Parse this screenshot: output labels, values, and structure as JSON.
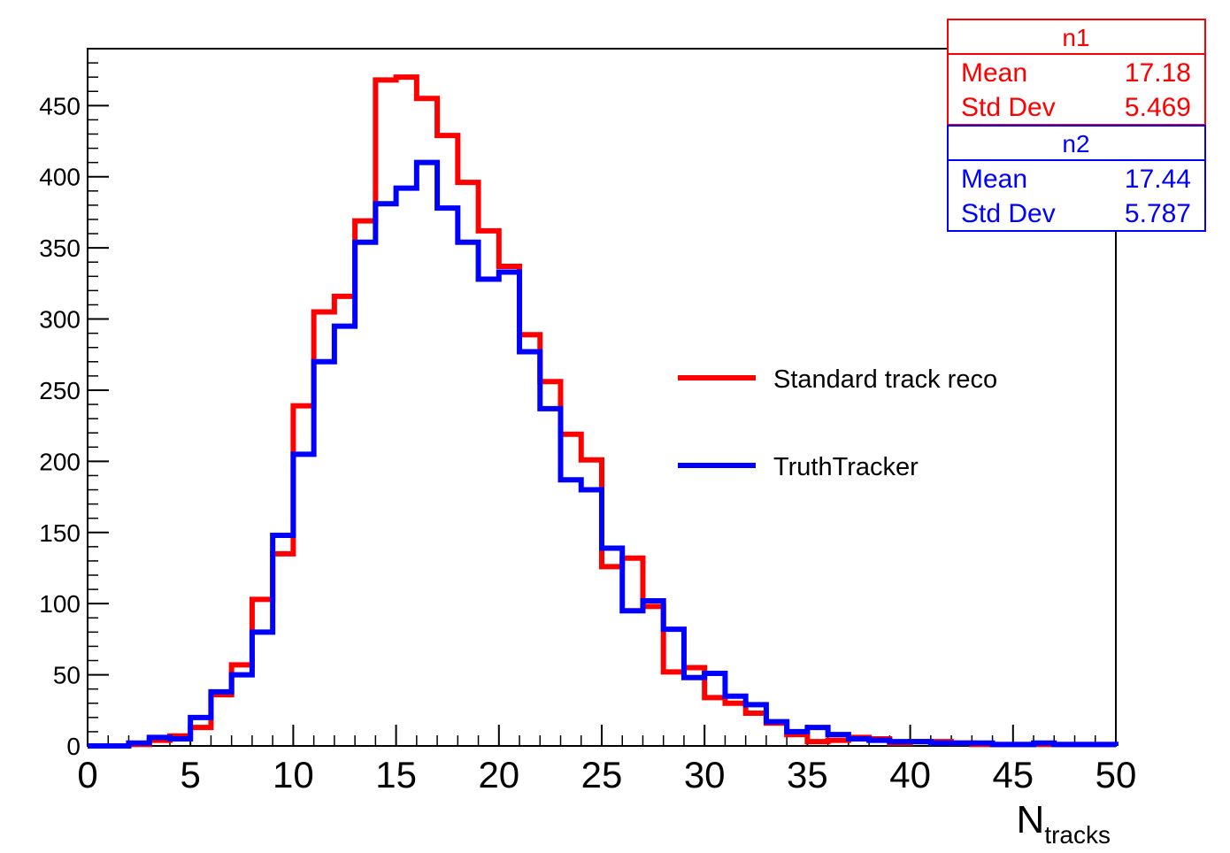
{
  "chart_data": {
    "type": "line",
    "step": true,
    "xlabel": "N",
    "xlabel_sub": "tracks",
    "xlim": [
      0,
      50
    ],
    "ylim": [
      0,
      490
    ],
    "xticks": [
      0,
      5,
      10,
      15,
      20,
      25,
      30,
      35,
      40,
      45,
      50
    ],
    "yticks": [
      0,
      50,
      100,
      150,
      200,
      250,
      300,
      350,
      400,
      450
    ],
    "grid": false,
    "bin_edges": [
      0,
      1,
      2,
      3,
      4,
      5,
      6,
      7,
      8,
      9,
      10,
      11,
      12,
      13,
      14,
      15,
      16,
      17,
      18,
      19,
      20,
      21,
      22,
      23,
      24,
      25,
      26,
      27,
      28,
      29,
      30,
      31,
      32,
      33,
      34,
      35,
      36,
      37,
      38,
      39,
      40,
      41,
      42,
      43,
      44,
      45,
      46,
      47,
      48,
      49,
      50
    ],
    "legend_position": "right",
    "series": [
      {
        "name": "Standard track reco",
        "color": "#ff0000",
        "values": [
          0,
          0,
          1,
          4,
          7,
          13,
          36,
          57,
          103,
          135,
          239,
          305,
          316,
          369,
          468,
          470,
          455,
          429,
          396,
          362,
          337,
          289,
          256,
          219,
          201,
          126,
          132,
          98,
          52,
          55,
          34,
          30,
          23,
          16,
          8,
          3,
          4,
          6,
          5,
          2,
          3,
          3,
          2,
          1,
          1,
          1,
          1,
          1,
          1,
          1
        ]
      },
      {
        "name": "TruthTracker",
        "color": "#0000ff",
        "values": [
          0,
          0,
          2,
          6,
          5,
          20,
          38,
          50,
          80,
          148,
          205,
          270,
          295,
          354,
          381,
          392,
          410,
          378,
          354,
          328,
          333,
          277,
          237,
          187,
          180,
          139,
          95,
          102,
          82,
          48,
          51,
          35,
          29,
          17,
          10,
          13,
          8,
          5,
          4,
          3,
          3,
          2,
          2,
          2,
          1,
          1,
          2,
          1,
          1,
          1
        ]
      }
    ]
  },
  "stats": [
    {
      "title": "n1",
      "color": "#ff0000",
      "rows": [
        {
          "label": "Mean",
          "value": "17.18"
        },
        {
          "label": "Std Dev",
          "value": "5.469"
        }
      ]
    },
    {
      "title": "n2",
      "color": "#0000ff",
      "rows": [
        {
          "label": "Mean",
          "value": "17.44"
        },
        {
          "label": "Std Dev",
          "value": "5.787"
        }
      ]
    }
  ]
}
